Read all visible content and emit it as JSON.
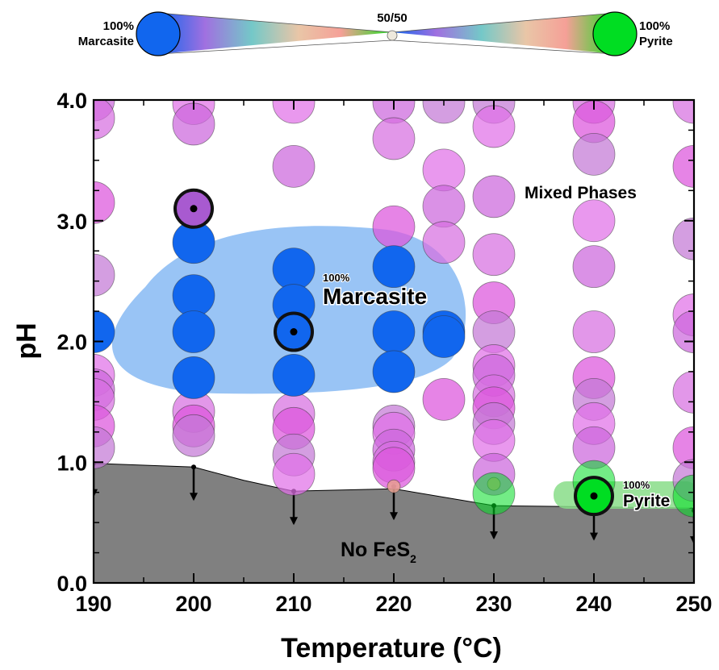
{
  "chart_data": {
    "type": "scatter",
    "xlabel": "Temperature (°C)",
    "ylabel": "pH",
    "xlim": [
      190,
      250
    ],
    "ylim": [
      0.0,
      4.0
    ],
    "xticks": [
      "190",
      "200",
      "210",
      "220",
      "230",
      "240",
      "250"
    ],
    "yticks": [
      "0.0",
      "1.0",
      "2.0",
      "3.0",
      "4.0"
    ],
    "grid": false,
    "legend": {
      "position": "top",
      "left_label_1": "100%",
      "left_label_2": "Marcasite",
      "center_label": "50/50",
      "right_label_1": "100%",
      "right_label_2": "Pyrite",
      "colors": [
        "#1166ee",
        "#9b6fe0",
        "#6ec4c4",
        "#f2a7a0",
        "#00dd22"
      ]
    },
    "annotations": {
      "mixed": "Mixed Phases",
      "marcasite_pct": "100%",
      "marcasite": "Marcasite",
      "pyrite_pct": "100%",
      "pyrite": "Pyrite",
      "no_fes2_main": "No FeS",
      "no_fes2_sub": "2"
    },
    "colors": {
      "marcasite": "#1166ee",
      "pyrite": "#00dd22",
      "mixed_purple": "#cc66dd",
      "mixed_magenta": "#dd55dd",
      "no_fes2_region": "#808080",
      "marcasite_region": "#99c4f5",
      "pyrite_region": "#88dd88"
    },
    "no_fes2_boundary": [
      {
        "x": 190,
        "y": 0.99
      },
      {
        "x": 200,
        "y": 0.96
      },
      {
        "x": 205,
        "y": 0.85
      },
      {
        "x": 210,
        "y": 0.76
      },
      {
        "x": 220,
        "y": 0.78
      },
      {
        "x": 230,
        "y": 0.64
      },
      {
        "x": 240,
        "y": 0.63
      },
      {
        "x": 250,
        "y": 0.62
      }
    ],
    "detection_limits": [
      {
        "x": 190,
        "y": 0.99
      },
      {
        "x": 200,
        "y": 0.96
      },
      {
        "x": 210,
        "y": 0.76
      },
      {
        "x": 220,
        "y": 0.8
      },
      {
        "x": 230,
        "y": 0.64
      },
      {
        "x": 240,
        "y": 0.63
      },
      {
        "x": 250,
        "y": 0.6
      }
    ],
    "series": [
      {
        "phase": "marcasite",
        "color": "#1166ee",
        "points": [
          {
            "x": 190,
            "y": 2.08
          },
          {
            "x": 200,
            "y": 2.82
          },
          {
            "x": 200,
            "y": 2.38
          },
          {
            "x": 200,
            "y": 2.08
          },
          {
            "x": 200,
            "y": 1.7
          },
          {
            "x": 210,
            "y": 2.6
          },
          {
            "x": 210,
            "y": 2.3
          },
          {
            "x": 210,
            "y": 1.72
          },
          {
            "x": 220,
            "y": 2.62
          },
          {
            "x": 220,
            "y": 2.08
          },
          {
            "x": 220,
            "y": 1.75
          },
          {
            "x": 225,
            "y": 2.08
          },
          {
            "x": 225,
            "y": 2.04
          }
        ]
      },
      {
        "phase": "pyrite",
        "color": "#00dd22",
        "points": [
          {
            "x": 230,
            "y": 0.74
          },
          {
            "x": 240,
            "y": 0.84
          },
          {
            "x": 250,
            "y": 0.72
          }
        ]
      },
      {
        "phase": "mixed",
        "color": "#cc66dd",
        "points": [
          {
            "x": 190,
            "y": 4.0
          },
          {
            "x": 190,
            "y": 3.85
          },
          {
            "x": 190,
            "y": 3.15
          },
          {
            "x": 190,
            "y": 2.55
          },
          {
            "x": 190,
            "y": 1.72
          },
          {
            "x": 190,
            "y": 1.6
          },
          {
            "x": 190,
            "y": 1.52
          },
          {
            "x": 190,
            "y": 1.3
          },
          {
            "x": 190,
            "y": 1.12
          },
          {
            "x": 200,
            "y": 3.97
          },
          {
            "x": 200,
            "y": 3.8
          },
          {
            "x": 200,
            "y": 1.42
          },
          {
            "x": 200,
            "y": 1.3
          },
          {
            "x": 200,
            "y": 1.22
          },
          {
            "x": 210,
            "y": 3.98
          },
          {
            "x": 210,
            "y": 3.45
          },
          {
            "x": 210,
            "y": 1.4
          },
          {
            "x": 210,
            "y": 1.28
          },
          {
            "x": 210,
            "y": 1.06
          },
          {
            "x": 210,
            "y": 0.9
          },
          {
            "x": 220,
            "y": 3.98
          },
          {
            "x": 220,
            "y": 3.68
          },
          {
            "x": 220,
            "y": 2.95
          },
          {
            "x": 220,
            "y": 1.3
          },
          {
            "x": 220,
            "y": 1.24
          },
          {
            "x": 220,
            "y": 1.1
          },
          {
            "x": 220,
            "y": 1.0
          },
          {
            "x": 220,
            "y": 0.95
          },
          {
            "x": 225,
            "y": 3.98
          },
          {
            "x": 225,
            "y": 3.42
          },
          {
            "x": 225,
            "y": 3.12
          },
          {
            "x": 225,
            "y": 2.82
          },
          {
            "x": 225,
            "y": 1.52
          },
          {
            "x": 230,
            "y": 3.98
          },
          {
            "x": 230,
            "y": 3.78
          },
          {
            "x": 230,
            "y": 3.2
          },
          {
            "x": 230,
            "y": 2.72
          },
          {
            "x": 230,
            "y": 2.32
          },
          {
            "x": 230,
            "y": 2.08
          },
          {
            "x": 230,
            "y": 1.8
          },
          {
            "x": 230,
            "y": 1.72
          },
          {
            "x": 230,
            "y": 1.55
          },
          {
            "x": 230,
            "y": 1.45
          },
          {
            "x": 230,
            "y": 1.32
          },
          {
            "x": 230,
            "y": 1.18
          },
          {
            "x": 230,
            "y": 0.9
          },
          {
            "x": 240,
            "y": 3.98
          },
          {
            "x": 240,
            "y": 3.82
          },
          {
            "x": 240,
            "y": 3.55
          },
          {
            "x": 240,
            "y": 3.0
          },
          {
            "x": 240,
            "y": 2.62
          },
          {
            "x": 240,
            "y": 2.08
          },
          {
            "x": 240,
            "y": 1.7
          },
          {
            "x": 240,
            "y": 1.52
          },
          {
            "x": 240,
            "y": 1.32
          },
          {
            "x": 240,
            "y": 1.12
          },
          {
            "x": 250,
            "y": 3.98
          },
          {
            "x": 250,
            "y": 3.45
          },
          {
            "x": 250,
            "y": 2.85
          },
          {
            "x": 250,
            "y": 2.22
          },
          {
            "x": 250,
            "y": 2.08
          },
          {
            "x": 250,
            "y": 1.58
          },
          {
            "x": 250,
            "y": 1.12
          },
          {
            "x": 250,
            "y": 0.85
          }
        ]
      },
      {
        "phase": "near 50/50",
        "color": "#e8a090",
        "points": [
          {
            "x": 220,
            "y": 0.8
          },
          {
            "x": 230,
            "y": 0.82
          }
        ]
      }
    ],
    "highlighted_samples": [
      {
        "x": 200,
        "y": 3.1,
        "color": "#a85ad0"
      },
      {
        "x": 210,
        "y": 2.08,
        "color": "#1166ee"
      },
      {
        "x": 240,
        "y": 0.72,
        "color": "#00dd22"
      }
    ]
  }
}
